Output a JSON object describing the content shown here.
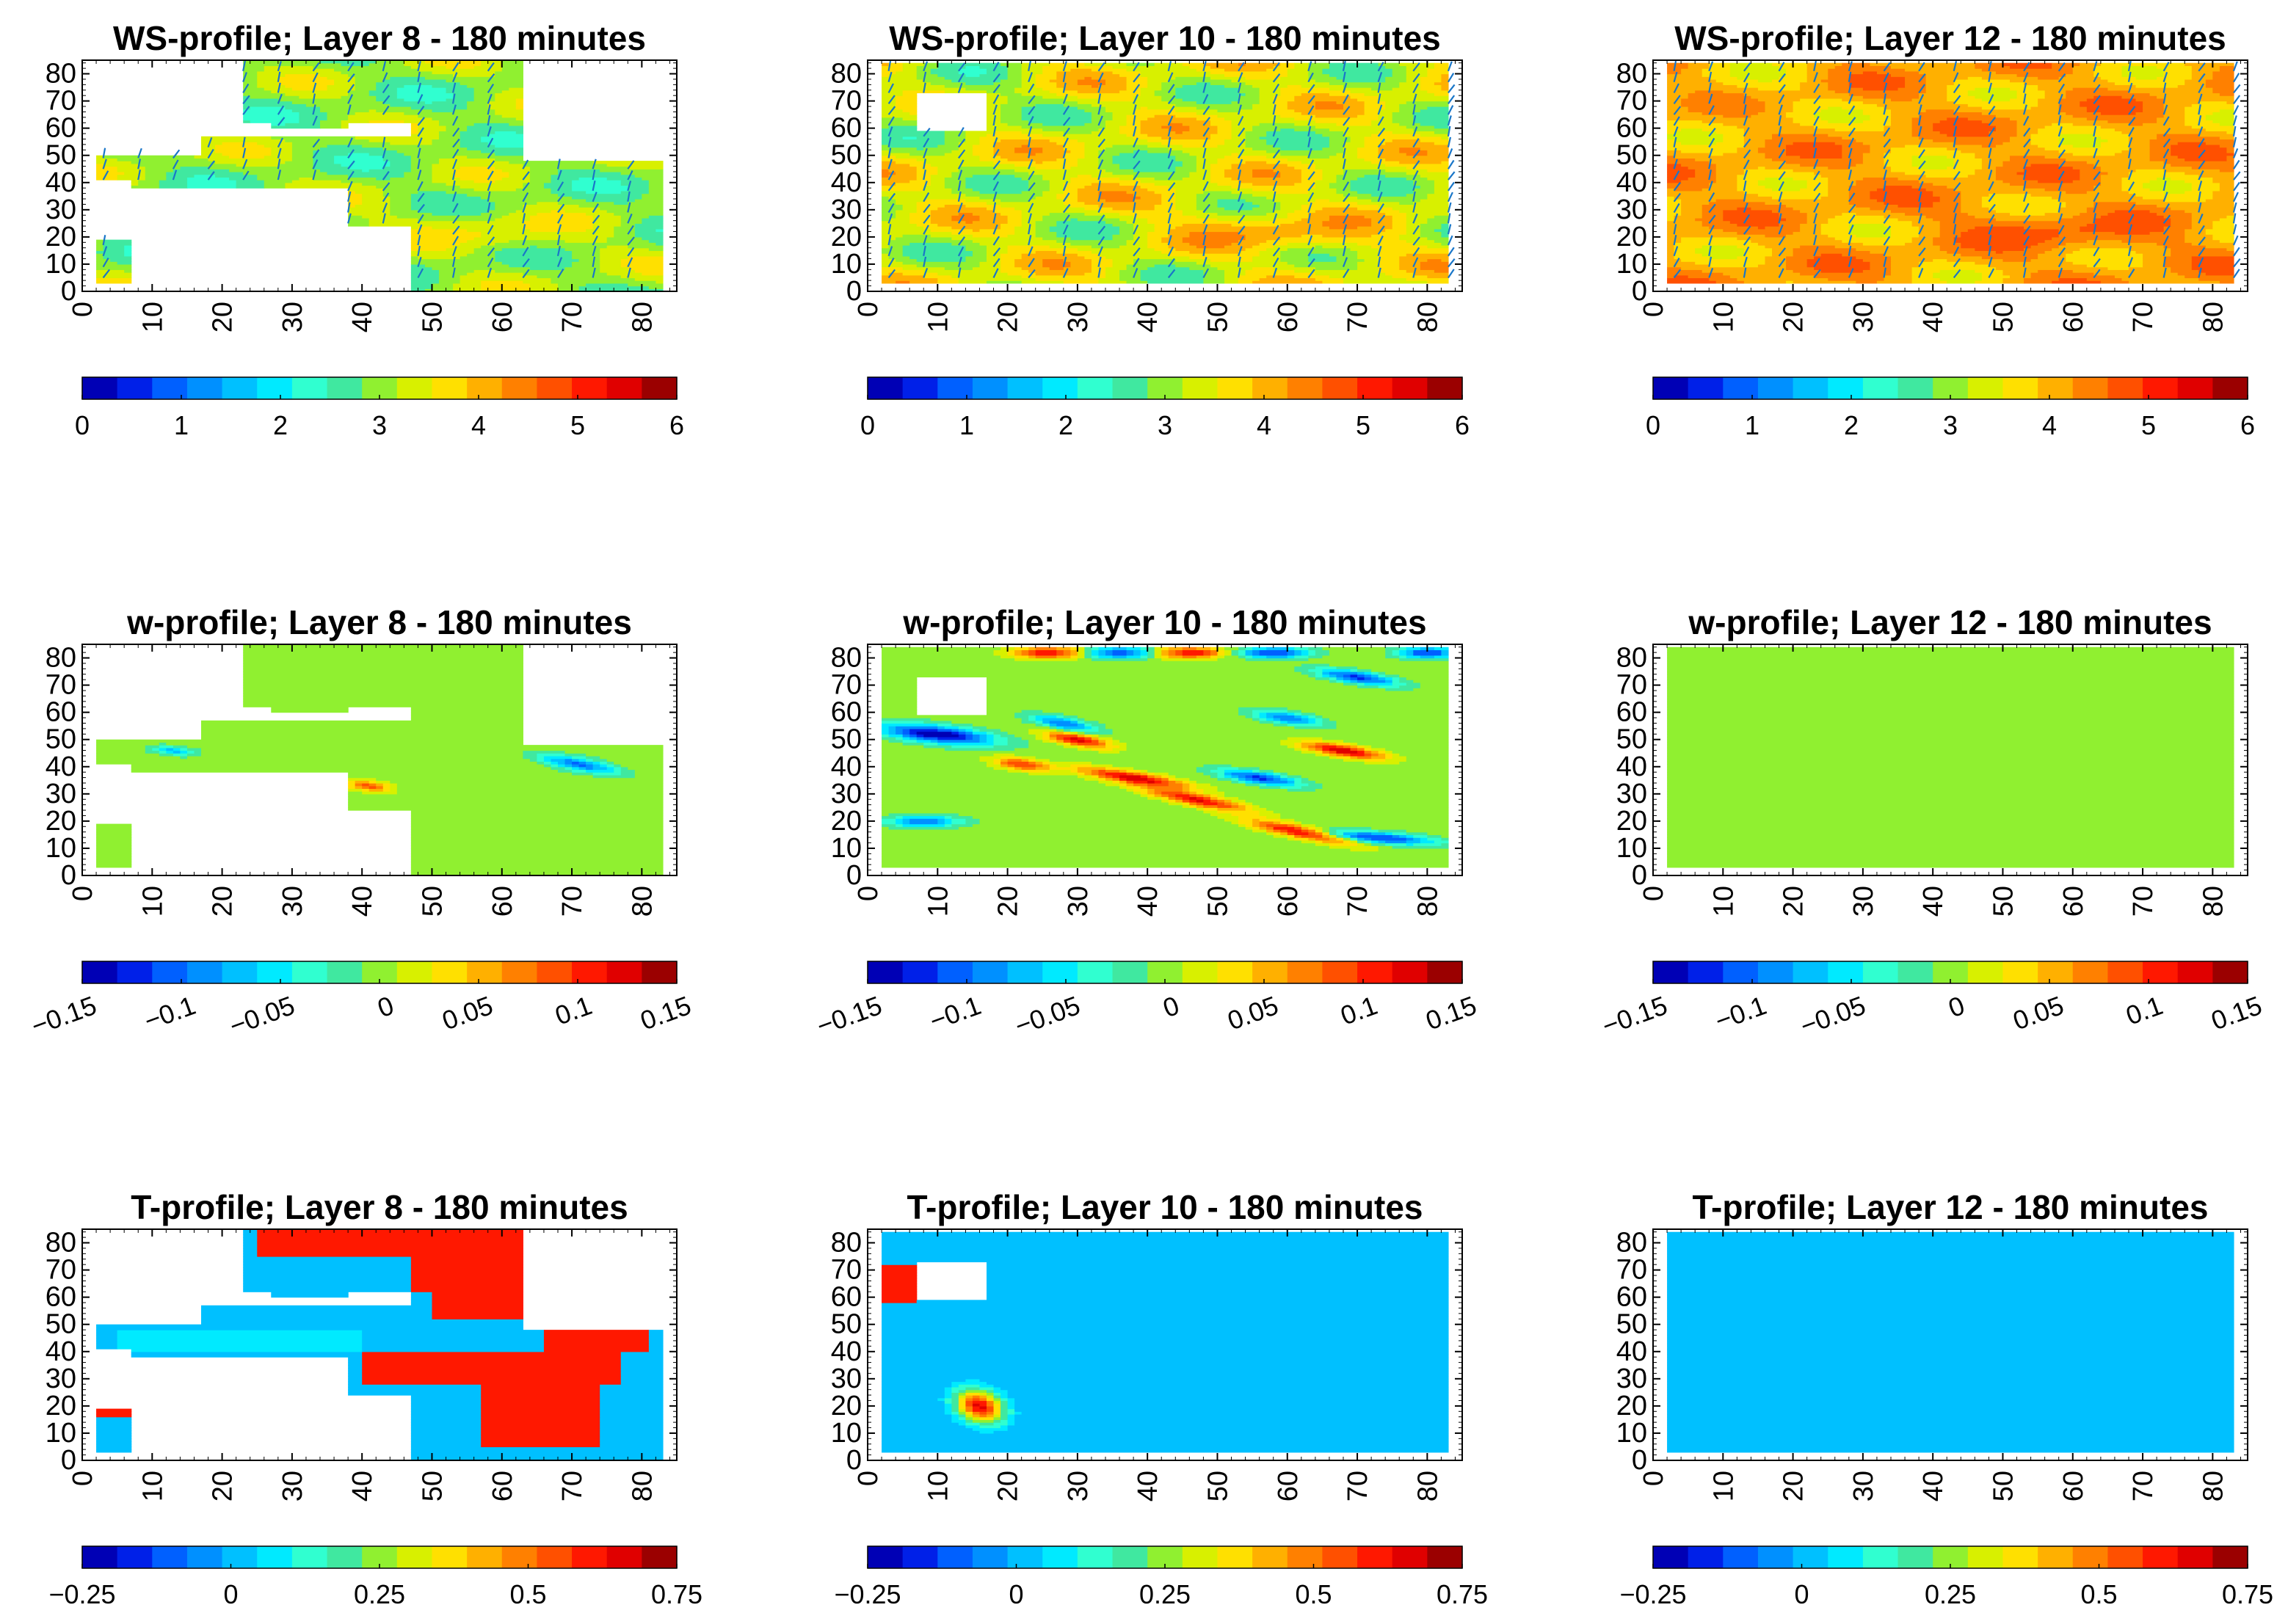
{
  "figure": {
    "time_label": "180 minutes",
    "colormap": [
      "#0000b5",
      "#0020e8",
      "#0060ff",
      "#0090ff",
      "#00c0ff",
      "#00eaff",
      "#30ffd0",
      "#40e8a0",
      "#90f030",
      "#d8f000",
      "#ffe000",
      "#ffb000",
      "#ff8000",
      "#ff5000",
      "#ff1800",
      "#e00000",
      "#9b0000"
    ]
  },
  "chart_data": [
    {
      "type": "heatmap",
      "title": "WS-profile; Layer 8 - 180 minutes",
      "field": "WS",
      "layer": 8,
      "xlim": [
        0,
        85
      ],
      "ylim": [
        0,
        85
      ],
      "xticks": [
        0,
        10,
        20,
        30,
        40,
        50,
        60,
        70,
        80
      ],
      "yticks": [
        0,
        10,
        20,
        30,
        40,
        50,
        60,
        70,
        80
      ],
      "colorbar": {
        "min": 0,
        "max": 6,
        "ticks": [
          "0",
          "1",
          "2",
          "3",
          "4",
          "5",
          "6"
        ],
        "rotated": false
      },
      "mask": "layer8",
      "pattern": "ws",
      "base_value": 3.0,
      "spread": 0.7,
      "quiver": true
    },
    {
      "type": "heatmap",
      "title": "WS-profile; Layer 10 - 180 minutes",
      "field": "WS",
      "layer": 10,
      "xlim": [
        0,
        85
      ],
      "ylim": [
        0,
        85
      ],
      "xticks": [
        0,
        10,
        20,
        30,
        40,
        50,
        60,
        70,
        80
      ],
      "yticks": [
        0,
        10,
        20,
        30,
        40,
        50,
        60,
        70,
        80
      ],
      "colorbar": {
        "min": 0,
        "max": 6,
        "ticks": [
          "0",
          "1",
          "2",
          "3",
          "4",
          "5",
          "6"
        ],
        "rotated": false
      },
      "mask": "layer10",
      "pattern": "ws",
      "base_value": 3.4,
      "spread": 0.9,
      "quiver": true
    },
    {
      "type": "heatmap",
      "title": "WS-profile; Layer 12 - 180 minutes",
      "field": "WS",
      "layer": 12,
      "xlim": [
        0,
        85
      ],
      "ylim": [
        0,
        85
      ],
      "xticks": [
        0,
        10,
        20,
        30,
        40,
        50,
        60,
        70,
        80
      ],
      "yticks": [
        0,
        10,
        20,
        30,
        40,
        50,
        60,
        70,
        80
      ],
      "colorbar": {
        "min": 0,
        "max": 6,
        "ticks": [
          "0",
          "1",
          "2",
          "3",
          "4",
          "5",
          "6"
        ],
        "rotated": false
      },
      "mask": "full",
      "pattern": "ws",
      "base_value": 4.1,
      "spread": 0.7,
      "quiver": true
    },
    {
      "type": "heatmap",
      "title": "w-profile; Layer 8 - 180 minutes",
      "field": "w",
      "layer": 8,
      "xlim": [
        0,
        85
      ],
      "ylim": [
        0,
        85
      ],
      "xticks": [
        0,
        10,
        20,
        30,
        40,
        50,
        60,
        70,
        80
      ],
      "yticks": [
        0,
        10,
        20,
        30,
        40,
        50,
        60,
        70,
        80
      ],
      "colorbar": {
        "min": -0.15,
        "max": 0.15,
        "ticks": [
          "−0.15",
          "−0.1",
          "−0.05",
          "0",
          "0.05",
          "0.1",
          "0.15"
        ],
        "rotated": true
      },
      "mask": "layer8",
      "pattern": "w8",
      "base_value": 0,
      "quiver": false
    },
    {
      "type": "heatmap",
      "title": "w-profile; Layer 10 - 180 minutes",
      "field": "w",
      "layer": 10,
      "xlim": [
        0,
        85
      ],
      "ylim": [
        0,
        85
      ],
      "xticks": [
        0,
        10,
        20,
        30,
        40,
        50,
        60,
        70,
        80
      ],
      "yticks": [
        0,
        10,
        20,
        30,
        40,
        50,
        60,
        70,
        80
      ],
      "colorbar": {
        "min": -0.15,
        "max": 0.15,
        "ticks": [
          "−0.15",
          "−0.1",
          "−0.05",
          "0",
          "0.05",
          "0.1",
          "0.15"
        ],
        "rotated": true
      },
      "mask": "layer10",
      "pattern": "w10",
      "base_value": 0,
      "quiver": false
    },
    {
      "type": "heatmap",
      "title": "w-profile; Layer 12 - 180 minutes",
      "field": "w",
      "layer": 12,
      "xlim": [
        0,
        85
      ],
      "ylim": [
        0,
        85
      ],
      "xticks": [
        0,
        10,
        20,
        30,
        40,
        50,
        60,
        70,
        80
      ],
      "yticks": [
        0,
        10,
        20,
        30,
        40,
        50,
        60,
        70,
        80
      ],
      "colorbar": {
        "min": -0.15,
        "max": 0.15,
        "ticks": [
          "−0.15",
          "−0.1",
          "−0.05",
          "0",
          "0.05",
          "0.1",
          "0.15"
        ],
        "rotated": true
      },
      "mask": "full",
      "pattern": "uniform",
      "base_value": 0,
      "quiver": false
    },
    {
      "type": "heatmap",
      "title": "T-profile; Layer 8 - 180 minutes",
      "field": "T",
      "layer": 8,
      "xlim": [
        0,
        85
      ],
      "ylim": [
        0,
        85
      ],
      "xticks": [
        0,
        10,
        20,
        30,
        40,
        50,
        60,
        70,
        80
      ],
      "yticks": [
        0,
        10,
        20,
        30,
        40,
        50,
        60,
        70,
        80
      ],
      "colorbar": {
        "min": -0.25,
        "max": 0.75,
        "ticks": [
          "−0.25",
          "0",
          "0.25",
          "0.5",
          "0.75"
        ],
        "rotated": false
      },
      "mask": "layer8",
      "pattern": "t8",
      "base_value": 0,
      "quiver": false
    },
    {
      "type": "heatmap",
      "title": "T-profile; Layer 10 - 180 minutes",
      "field": "T",
      "layer": 10,
      "xlim": [
        0,
        85
      ],
      "ylim": [
        0,
        85
      ],
      "xticks": [
        0,
        10,
        20,
        30,
        40,
        50,
        60,
        70,
        80
      ],
      "yticks": [
        0,
        10,
        20,
        30,
        40,
        50,
        60,
        70,
        80
      ],
      "colorbar": {
        "min": -0.25,
        "max": 0.75,
        "ticks": [
          "−0.25",
          "0",
          "0.25",
          "0.5",
          "0.75"
        ],
        "rotated": false
      },
      "mask": "layer10",
      "pattern": "t10",
      "base_value": 0,
      "quiver": false
    },
    {
      "type": "heatmap",
      "title": "T-profile; Layer 12 - 180 minutes",
      "field": "T",
      "layer": 12,
      "xlim": [
        0,
        85
      ],
      "ylim": [
        0,
        85
      ],
      "xticks": [
        0,
        10,
        20,
        30,
        40,
        50,
        60,
        70,
        80
      ],
      "yticks": [
        0,
        10,
        20,
        30,
        40,
        50,
        60,
        70,
        80
      ],
      "colorbar": {
        "min": -0.25,
        "max": 0.75,
        "ticks": [
          "−0.25",
          "0",
          "0.25",
          "0.5",
          "0.75"
        ],
        "rotated": false
      },
      "mask": "full",
      "pattern": "uniform",
      "base_value": 0,
      "quiver": false
    }
  ]
}
